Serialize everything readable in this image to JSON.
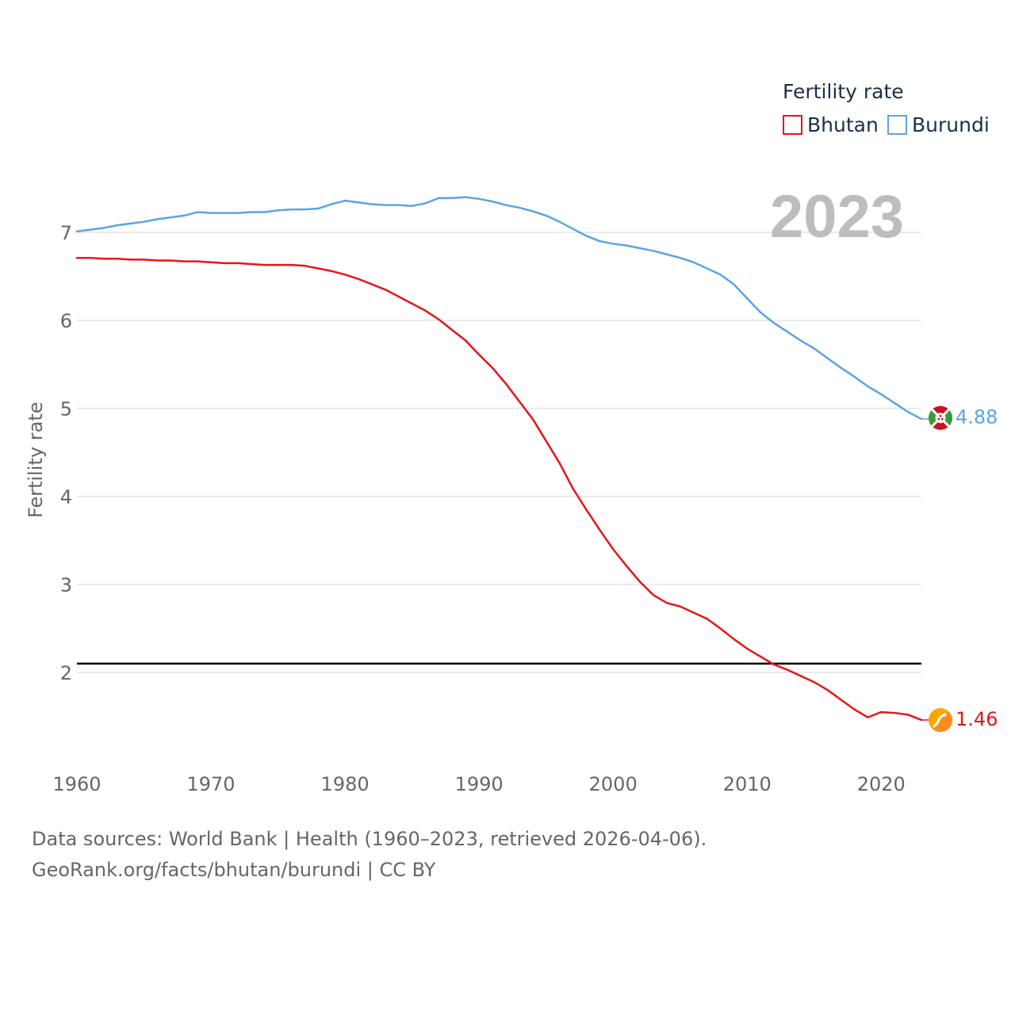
{
  "chart_data": {
    "type": "line",
    "year_display": "2023",
    "ylabel": "Fertility rate",
    "xlabel": "",
    "xlim": [
      1960,
      2023
    ],
    "ylim": [
      1.0,
      7.4
    ],
    "x_ticks": [
      "1960",
      "1970",
      "1980",
      "1990",
      "2000",
      "2010",
      "2020"
    ],
    "y_ticks": [
      "2",
      "3",
      "4",
      "5",
      "6",
      "7"
    ],
    "reference_line": {
      "value": 2.1,
      "color": "#000000"
    },
    "legend": {
      "title": "Fertility rate",
      "position": "top-right"
    },
    "x": [
      1960,
      1961,
      1962,
      1963,
      1964,
      1965,
      1966,
      1967,
      1968,
      1969,
      1970,
      1971,
      1972,
      1973,
      1974,
      1975,
      1976,
      1977,
      1978,
      1979,
      1980,
      1981,
      1982,
      1983,
      1984,
      1985,
      1986,
      1987,
      1988,
      1989,
      1990,
      1991,
      1992,
      1993,
      1994,
      1995,
      1996,
      1997,
      1998,
      1999,
      2000,
      2001,
      2002,
      2003,
      2004,
      2005,
      2006,
      2007,
      2008,
      2009,
      2010,
      2011,
      2012,
      2013,
      2014,
      2015,
      2016,
      2017,
      2018,
      2019,
      2020,
      2021,
      2022,
      2023
    ],
    "series": [
      {
        "name": "Bhutan",
        "color": "#e8141b",
        "end_label": "1.46",
        "values": [
          6.71,
          6.71,
          6.7,
          6.7,
          6.69,
          6.69,
          6.68,
          6.68,
          6.67,
          6.67,
          6.66,
          6.65,
          6.65,
          6.64,
          6.63,
          6.63,
          6.63,
          6.62,
          6.59,
          6.56,
          6.52,
          6.47,
          6.41,
          6.35,
          6.27,
          6.19,
          6.11,
          6.01,
          5.89,
          5.77,
          5.61,
          5.46,
          5.28,
          5.08,
          4.88,
          4.63,
          4.38,
          4.09,
          3.85,
          3.62,
          3.4,
          3.21,
          3.03,
          2.88,
          2.79,
          2.75,
          2.68,
          2.61,
          2.5,
          2.38,
          2.27,
          2.18,
          2.09,
          2.03,
          1.96,
          1.89,
          1.8,
          1.69,
          1.58,
          1.49,
          1.55,
          1.54,
          1.52,
          1.46
        ]
      },
      {
        "name": "Burundi",
        "color": "#5ba4e5",
        "end_label": "4.88",
        "values": [
          7.01,
          7.03,
          7.05,
          7.08,
          7.1,
          7.12,
          7.15,
          7.17,
          7.19,
          7.23,
          7.22,
          7.22,
          7.22,
          7.23,
          7.23,
          7.25,
          7.26,
          7.26,
          7.27,
          7.32,
          7.36,
          7.34,
          7.32,
          7.31,
          7.31,
          7.3,
          7.33,
          7.39,
          7.39,
          7.4,
          7.38,
          7.35,
          7.31,
          7.28,
          7.24,
          7.19,
          7.12,
          7.04,
          6.96,
          6.9,
          6.87,
          6.85,
          6.82,
          6.79,
          6.75,
          6.71,
          6.66,
          6.59,
          6.52,
          6.41,
          6.25,
          6.09,
          5.97,
          5.87,
          5.77,
          5.68,
          5.57,
          5.46,
          5.36,
          5.25,
          5.16,
          5.06,
          4.96,
          4.88
        ]
      }
    ]
  },
  "footer": {
    "line1": "Data sources: World Bank | Health (1960–2023, retrieved 2026-04-06).",
    "line2": "GeoRank.org/facts/bhutan/burundi | CC BY"
  }
}
